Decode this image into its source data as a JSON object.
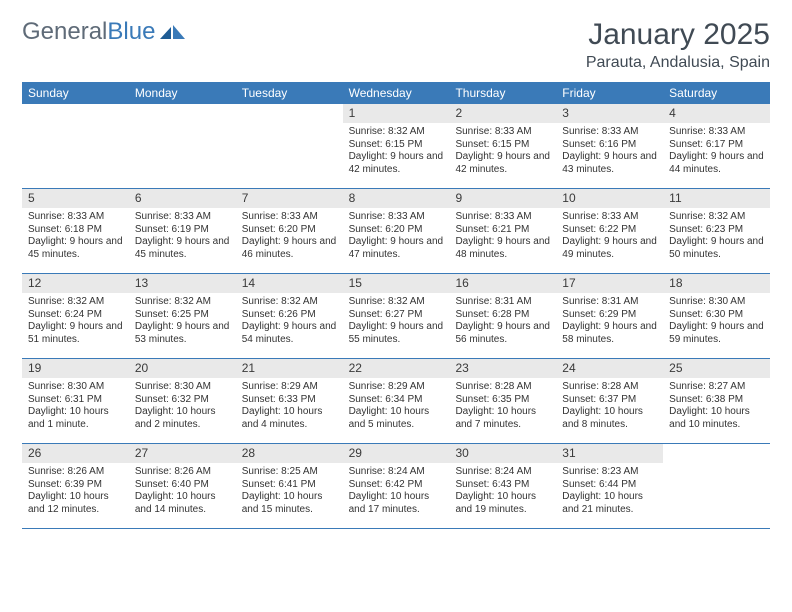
{
  "logo": {
    "word1": "General",
    "word2": "Blue"
  },
  "title": "January 2025",
  "location": "Parauta, Andalusia, Spain",
  "colors": {
    "accent": "#3a7ab8",
    "dow_text": "#ffffff",
    "daynum_bg": "#e9e9e9",
    "text": "#333333",
    "title_text": "#404a54"
  },
  "day_names": [
    "Sunday",
    "Monday",
    "Tuesday",
    "Wednesday",
    "Thursday",
    "Friday",
    "Saturday"
  ],
  "weeks": [
    [
      {
        "empty": true
      },
      {
        "empty": true
      },
      {
        "empty": true
      },
      {
        "num": "1",
        "sunrise": "8:32 AM",
        "sunset": "6:15 PM",
        "daylight_h": "9",
        "daylight_m": "42"
      },
      {
        "num": "2",
        "sunrise": "8:33 AM",
        "sunset": "6:15 PM",
        "daylight_h": "9",
        "daylight_m": "42"
      },
      {
        "num": "3",
        "sunrise": "8:33 AM",
        "sunset": "6:16 PM",
        "daylight_h": "9",
        "daylight_m": "43"
      },
      {
        "num": "4",
        "sunrise": "8:33 AM",
        "sunset": "6:17 PM",
        "daylight_h": "9",
        "daylight_m": "44"
      }
    ],
    [
      {
        "num": "5",
        "sunrise": "8:33 AM",
        "sunset": "6:18 PM",
        "daylight_h": "9",
        "daylight_m": "45"
      },
      {
        "num": "6",
        "sunrise": "8:33 AM",
        "sunset": "6:19 PM",
        "daylight_h": "9",
        "daylight_m": "45"
      },
      {
        "num": "7",
        "sunrise": "8:33 AM",
        "sunset": "6:20 PM",
        "daylight_h": "9",
        "daylight_m": "46"
      },
      {
        "num": "8",
        "sunrise": "8:33 AM",
        "sunset": "6:20 PM",
        "daylight_h": "9",
        "daylight_m": "47"
      },
      {
        "num": "9",
        "sunrise": "8:33 AM",
        "sunset": "6:21 PM",
        "daylight_h": "9",
        "daylight_m": "48"
      },
      {
        "num": "10",
        "sunrise": "8:33 AM",
        "sunset": "6:22 PM",
        "daylight_h": "9",
        "daylight_m": "49"
      },
      {
        "num": "11",
        "sunrise": "8:32 AM",
        "sunset": "6:23 PM",
        "daylight_h": "9",
        "daylight_m": "50"
      }
    ],
    [
      {
        "num": "12",
        "sunrise": "8:32 AM",
        "sunset": "6:24 PM",
        "daylight_h": "9",
        "daylight_m": "51"
      },
      {
        "num": "13",
        "sunrise": "8:32 AM",
        "sunset": "6:25 PM",
        "daylight_h": "9",
        "daylight_m": "53"
      },
      {
        "num": "14",
        "sunrise": "8:32 AM",
        "sunset": "6:26 PM",
        "daylight_h": "9",
        "daylight_m": "54"
      },
      {
        "num": "15",
        "sunrise": "8:32 AM",
        "sunset": "6:27 PM",
        "daylight_h": "9",
        "daylight_m": "55"
      },
      {
        "num": "16",
        "sunrise": "8:31 AM",
        "sunset": "6:28 PM",
        "daylight_h": "9",
        "daylight_m": "56"
      },
      {
        "num": "17",
        "sunrise": "8:31 AM",
        "sunset": "6:29 PM",
        "daylight_h": "9",
        "daylight_m": "58"
      },
      {
        "num": "18",
        "sunrise": "8:30 AM",
        "sunset": "6:30 PM",
        "daylight_h": "9",
        "daylight_m": "59"
      }
    ],
    [
      {
        "num": "19",
        "sunrise": "8:30 AM",
        "sunset": "6:31 PM",
        "daylight_h": "10",
        "daylight_m": "1"
      },
      {
        "num": "20",
        "sunrise": "8:30 AM",
        "sunset": "6:32 PM",
        "daylight_h": "10",
        "daylight_m": "2"
      },
      {
        "num": "21",
        "sunrise": "8:29 AM",
        "sunset": "6:33 PM",
        "daylight_h": "10",
        "daylight_m": "4"
      },
      {
        "num": "22",
        "sunrise": "8:29 AM",
        "sunset": "6:34 PM",
        "daylight_h": "10",
        "daylight_m": "5"
      },
      {
        "num": "23",
        "sunrise": "8:28 AM",
        "sunset": "6:35 PM",
        "daylight_h": "10",
        "daylight_m": "7"
      },
      {
        "num": "24",
        "sunrise": "8:28 AM",
        "sunset": "6:37 PM",
        "daylight_h": "10",
        "daylight_m": "8"
      },
      {
        "num": "25",
        "sunrise": "8:27 AM",
        "sunset": "6:38 PM",
        "daylight_h": "10",
        "daylight_m": "10"
      }
    ],
    [
      {
        "num": "26",
        "sunrise": "8:26 AM",
        "sunset": "6:39 PM",
        "daylight_h": "10",
        "daylight_m": "12"
      },
      {
        "num": "27",
        "sunrise": "8:26 AM",
        "sunset": "6:40 PM",
        "daylight_h": "10",
        "daylight_m": "14"
      },
      {
        "num": "28",
        "sunrise": "8:25 AM",
        "sunset": "6:41 PM",
        "daylight_h": "10",
        "daylight_m": "15"
      },
      {
        "num": "29",
        "sunrise": "8:24 AM",
        "sunset": "6:42 PM",
        "daylight_h": "10",
        "daylight_m": "17"
      },
      {
        "num": "30",
        "sunrise": "8:24 AM",
        "sunset": "6:43 PM",
        "daylight_h": "10",
        "daylight_m": "19"
      },
      {
        "num": "31",
        "sunrise": "8:23 AM",
        "sunset": "6:44 PM",
        "daylight_h": "10",
        "daylight_m": "21"
      },
      {
        "empty": true
      }
    ]
  ],
  "labels": {
    "sunrise": "Sunrise:",
    "sunset": "Sunset:",
    "daylight_prefix": "Daylight:",
    "hours_word": "hours",
    "and_word": "and",
    "minutes_singular": "minute.",
    "minutes_plural": "minutes."
  }
}
